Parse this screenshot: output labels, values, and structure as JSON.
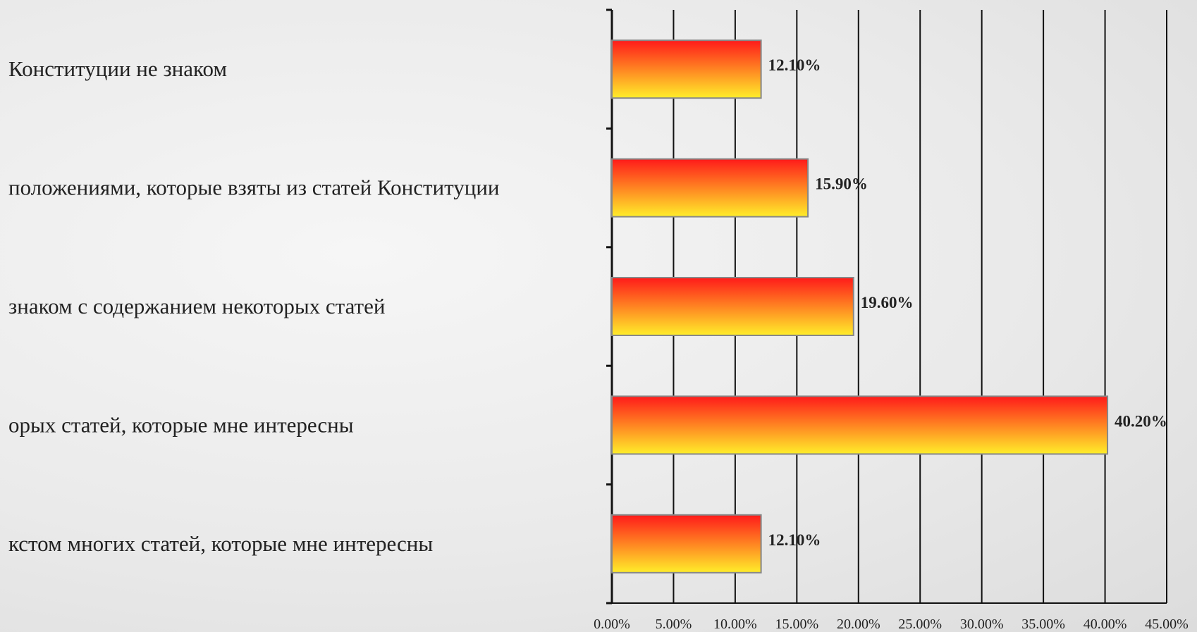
{
  "chart_data": {
    "type": "bar",
    "orientation": "horizontal",
    "title": "",
    "xlabel": "",
    "ylabel": "",
    "xlim": [
      0,
      45
    ],
    "grid": true,
    "categories": [
      "Конституции не знаком",
      "положениями, которые взяты из статей Конституции",
      "знаком с содержанием некоторых статей",
      "орых статей, которые мне интересны",
      "кстом  многих статей, которые мне интересны"
    ],
    "values": [
      12.1,
      15.9,
      19.6,
      40.2,
      12.1
    ],
    "value_labels": [
      "12.10%",
      "15.90%",
      "19.60%",
      "40.20%",
      "12.10%"
    ],
    "ticks": [
      "0.00%",
      "5.00%",
      "10.00%",
      "15.00%",
      "20.00%",
      "25.00%",
      "30.00%",
      "35.00%",
      "40.00%",
      "45.00%"
    ],
    "tick_values": [
      0,
      5,
      10,
      15,
      20,
      25,
      30,
      35,
      40,
      45
    ],
    "bar_colors": {
      "top": "#ff1a1a",
      "bottom": "#ffee2a",
      "border": "#888888"
    },
    "gridline_color": "#111111"
  }
}
